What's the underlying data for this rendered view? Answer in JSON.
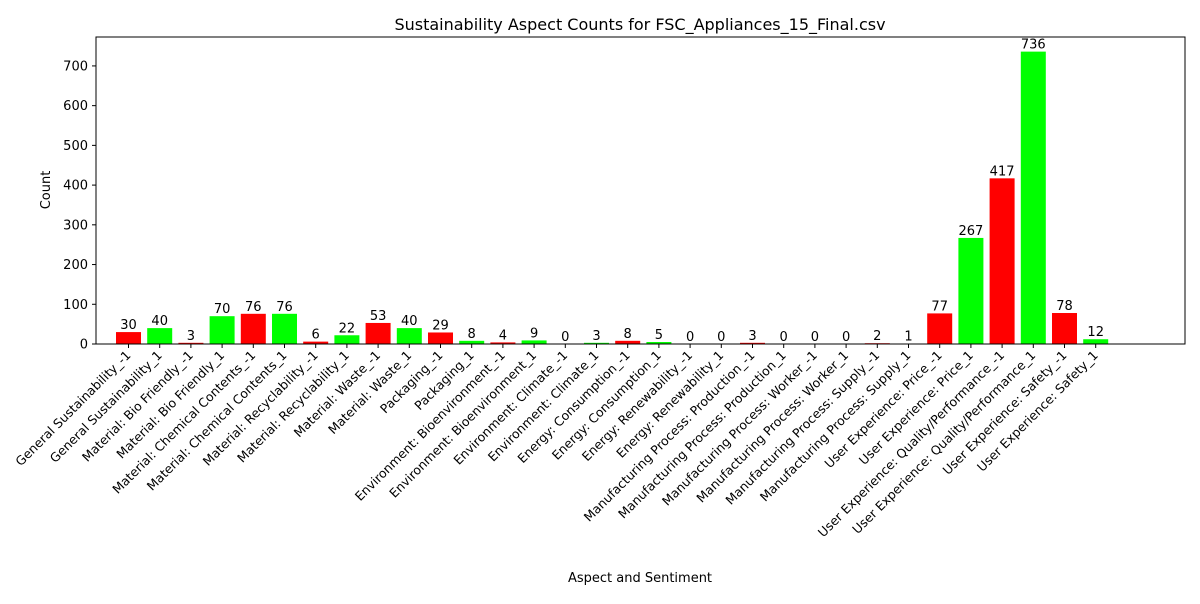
{
  "chart_data": {
    "type": "bar",
    "title": "Sustainability Aspect Counts for FSC_Appliances_15_Final.csv",
    "xlabel": "Aspect and Sentiment",
    "ylabel": "Count",
    "ylim": [
      0,
      772.8
    ],
    "yticks": [
      0,
      100,
      200,
      300,
      400,
      500,
      600,
      700
    ],
    "grid": false,
    "categories": [
      "General Sustainability_-1",
      "General Sustainability_1",
      "Material: Bio Friendly_-1",
      "Material: Bio Friendly_1",
      "Material: Chemical Contents_-1",
      "Material: Chemical Contents_1",
      "Material: Recyclability_-1",
      "Material: Recyclability_1",
      "Material: Waste_-1",
      "Material: Waste_1",
      "Packaging_-1",
      "Packaging_1",
      "Environment: Bioenvironment_-1",
      "Environment: Bioenvironment_1",
      "Environment: Climate_-1",
      "Environment: Climate_1",
      "Energy: Consumption_-1",
      "Energy: Consumption_1",
      "Energy: Renewability_-1",
      "Energy: Renewability_1",
      "Manufacturing Process: Production_-1",
      "Manufacturing Process: Production_1",
      "Manufacturing Process: Worker_-1",
      "Manufacturing Process: Worker_1",
      "Manufacturing Process: Supply_-1",
      "Manufacturing Process: Supply_1",
      "User Experience: Price_-1",
      "User Experience: Price_1",
      "User Experience: Quality/Performance_-1",
      "User Experience: Quality/Performance_1",
      "User Experience: Safety_-1",
      "User Experience: Safety_1"
    ],
    "values": [
      30,
      40,
      3,
      70,
      76,
      76,
      6,
      22,
      53,
      40,
      29,
      8,
      4,
      9,
      0,
      3,
      8,
      5,
      0,
      0,
      3,
      0,
      0,
      0,
      2,
      1,
      77,
      267,
      417,
      736,
      78,
      12
    ],
    "colors": {
      "negative": "#ff0000",
      "positive": "#00ff00"
    },
    "data_labels": true
  }
}
